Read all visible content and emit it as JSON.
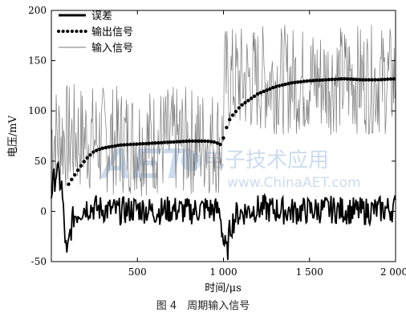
{
  "chart_data": {
    "type": "line",
    "xlabel": "时间/μs",
    "ylabel": "电压/mV",
    "xlim": [
      0,
      2000
    ],
    "ylim": [
      -50,
      200
    ],
    "xticks": [
      500,
      1000,
      1500,
      2000
    ],
    "xtick_labels": [
      "500",
      "1 000",
      "1 500",
      "2 000"
    ],
    "yticks": [
      -50,
      0,
      50,
      100,
      150,
      200
    ],
    "ytick_labels": [
      "-50",
      "0",
      "50",
      "100",
      "150",
      "200"
    ],
    "grid": false,
    "legend_position": "top-left",
    "series": [
      {
        "name": "误差",
        "style": "solid-thick",
        "color": "#000000",
        "points": [
          [
            0,
            20
          ],
          [
            30,
            40
          ],
          [
            60,
            25
          ],
          [
            75,
            -15
          ],
          [
            90,
            -48
          ],
          [
            110,
            -20
          ],
          [
            130,
            -5
          ],
          [
            160,
            0
          ],
          [
            200,
            5
          ],
          [
            300,
            2
          ],
          [
            400,
            0
          ],
          [
            500,
            3
          ],
          [
            600,
            0
          ],
          [
            700,
            2
          ],
          [
            800,
            0
          ],
          [
            900,
            3
          ],
          [
            980,
            0
          ],
          [
            1000,
            -30
          ],
          [
            1020,
            -42
          ],
          [
            1040,
            -15
          ],
          [
            1080,
            -2
          ],
          [
            1200,
            3
          ],
          [
            1400,
            0
          ],
          [
            1600,
            2
          ],
          [
            1800,
            0
          ],
          [
            2000,
            3
          ]
        ]
      },
      {
        "name": "输出信号",
        "style": "dotted",
        "color": "#000000",
        "points": [
          [
            100,
            27
          ],
          [
            150,
            40
          ],
          [
            200,
            52
          ],
          [
            250,
            60
          ],
          [
            300,
            63
          ],
          [
            400,
            66
          ],
          [
            500,
            67
          ],
          [
            600,
            68
          ],
          [
            700,
            69
          ],
          [
            800,
            70
          ],
          [
            900,
            70
          ],
          [
            950,
            69
          ],
          [
            990,
            66
          ],
          [
            1010,
            80
          ],
          [
            1040,
            93
          ],
          [
            1100,
            105
          ],
          [
            1200,
            117
          ],
          [
            1300,
            124
          ],
          [
            1400,
            128
          ],
          [
            1500,
            130
          ],
          [
            1600,
            131
          ],
          [
            1700,
            132
          ],
          [
            1800,
            131
          ],
          [
            1900,
            131
          ],
          [
            2000,
            132
          ]
        ]
      },
      {
        "name": "输入信号",
        "style": "thin-noisy",
        "color": "#7a7a7a",
        "points": [
          [
            0,
            75
          ],
          [
            250,
            72
          ],
          [
            500,
            70
          ],
          [
            750,
            70
          ],
          [
            999,
            70
          ],
          [
            1001,
            130
          ],
          [
            1250,
            132
          ],
          [
            1500,
            130
          ],
          [
            1750,
            132
          ],
          [
            2000,
            130
          ]
        ]
      }
    ]
  },
  "watermark": {
    "logo": "AET",
    "brand_cn": "电子技术应用",
    "url": "www.ChinaAET.com"
  },
  "caption": "图 4　周期输入信号"
}
